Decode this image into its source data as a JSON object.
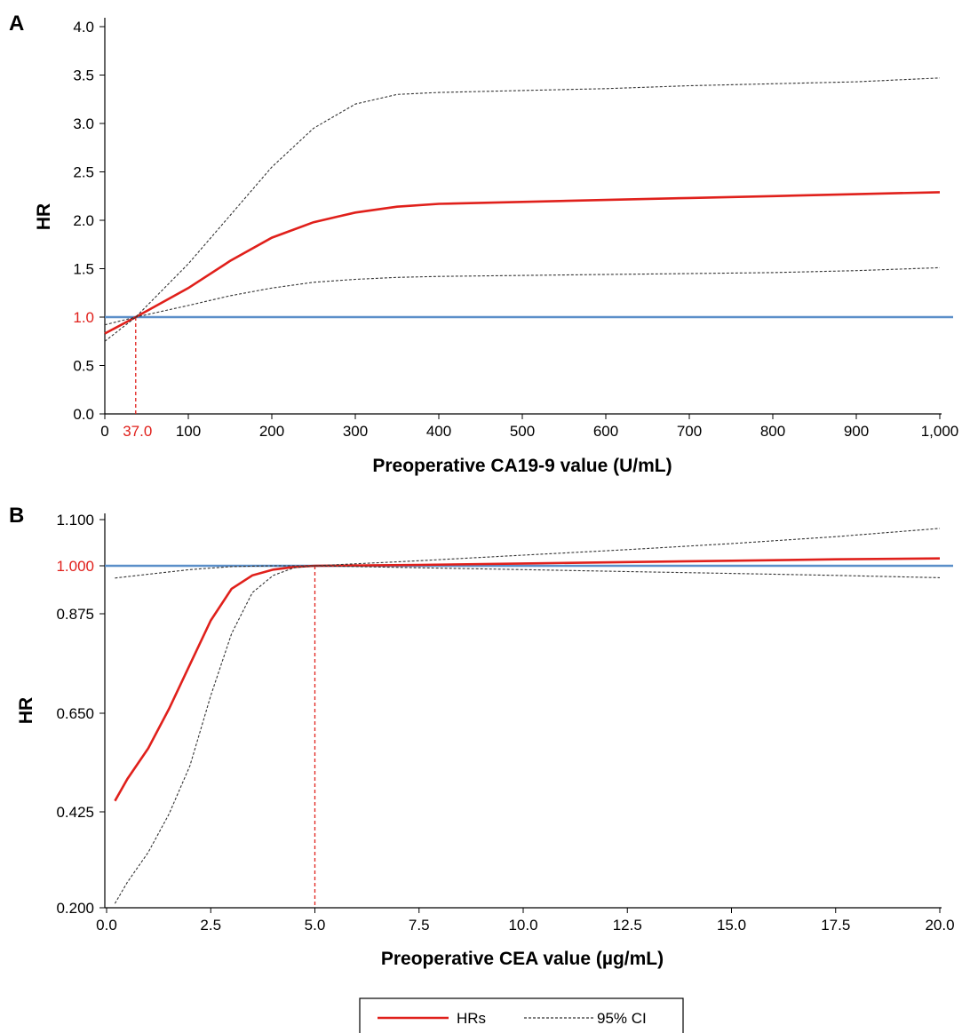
{
  "legend": {
    "hr_label": "HRs",
    "ci_label": "95% CI"
  },
  "colors": {
    "hr": "#e0201b",
    "ci": "#333333",
    "reference": "#5b8fc9",
    "highlight": "#e0201b"
  },
  "chart_data": [
    {
      "panel": "A",
      "type": "line",
      "xlabel": "Preoperative CA19-9 value (U/mL)",
      "ylabel": "HR",
      "xlim": [
        0,
        1000
      ],
      "ylim": [
        0,
        4.0
      ],
      "x_ticks": [
        {
          "value": 0,
          "label": "0"
        },
        {
          "value": 100,
          "label": "100"
        },
        {
          "value": 200,
          "label": "200"
        },
        {
          "value": 300,
          "label": "300"
        },
        {
          "value": 400,
          "label": "400"
        },
        {
          "value": 500,
          "label": "500"
        },
        {
          "value": 600,
          "label": "600"
        },
        {
          "value": 700,
          "label": "700"
        },
        {
          "value": 800,
          "label": "800"
        },
        {
          "value": 900,
          "label": "900"
        },
        {
          "value": 1000,
          "label": "1,000"
        }
      ],
      "y_ticks": [
        {
          "value": 0,
          "label": "0.0"
        },
        {
          "value": 0.5,
          "label": "0.5"
        },
        {
          "value": 1.0,
          "label": "1.0",
          "highlight": true
        },
        {
          "value": 1.5,
          "label": "1.5"
        },
        {
          "value": 2.0,
          "label": "2.0"
        },
        {
          "value": 2.5,
          "label": "2.5"
        },
        {
          "value": 3.0,
          "label": "3.0"
        },
        {
          "value": 3.5,
          "label": "3.5"
        },
        {
          "value": 4.0,
          "label": "4.0"
        }
      ],
      "cutoff": {
        "value": 37,
        "label": "37.0"
      },
      "reference_y": 1.0,
      "series": [
        {
          "name": "HRs",
          "role": "hr",
          "x": [
            0,
            37,
            100,
            150,
            200,
            250,
            300,
            350,
            400,
            500,
            600,
            700,
            800,
            900,
            1000
          ],
          "y": [
            0.83,
            1.0,
            1.3,
            1.58,
            1.82,
            1.98,
            2.08,
            2.14,
            2.17,
            2.19,
            2.21,
            2.23,
            2.25,
            2.27,
            2.29
          ]
        },
        {
          "name": "95% CI",
          "role": "ci_upper",
          "x": [
            0,
            37,
            100,
            150,
            200,
            250,
            300,
            350,
            400,
            500,
            600,
            700,
            800,
            900,
            1000
          ],
          "y": [
            0.75,
            1.0,
            1.55,
            2.05,
            2.55,
            2.95,
            3.2,
            3.3,
            3.32,
            3.34,
            3.36,
            3.39,
            3.41,
            3.43,
            3.47
          ]
        },
        {
          "name": "95% CI",
          "role": "ci_lower",
          "x": [
            0,
            37,
            100,
            150,
            200,
            250,
            300,
            350,
            400,
            500,
            600,
            700,
            800,
            900,
            1000
          ],
          "y": [
            0.92,
            1.0,
            1.12,
            1.22,
            1.3,
            1.36,
            1.39,
            1.41,
            1.42,
            1.43,
            1.44,
            1.45,
            1.46,
            1.48,
            1.51
          ]
        }
      ]
    },
    {
      "panel": "B",
      "type": "line",
      "xlabel": "Preoperative CEA value (µg/mL)",
      "ylabel": "HR",
      "xlim": [
        0,
        20
      ],
      "y_scale": "piecewise (tick-based, non-linear)",
      "x_ticks": [
        {
          "value": 0,
          "label": "0.0"
        },
        {
          "value": 2.5,
          "label": "2.5"
        },
        {
          "value": 5,
          "label": "5.0"
        },
        {
          "value": 7.5,
          "label": "7.5"
        },
        {
          "value": 10,
          "label": "10.0"
        },
        {
          "value": 12.5,
          "label": "12.5"
        },
        {
          "value": 15,
          "label": "15.0"
        },
        {
          "value": 17.5,
          "label": "17.5"
        },
        {
          "value": 20,
          "label": "20.0"
        }
      ],
      "y_ticks": [
        {
          "value": 0.2,
          "label": "0.200"
        },
        {
          "value": 0.425,
          "label": "0.425"
        },
        {
          "value": 0.65,
          "label": "0.650"
        },
        {
          "value": 0.875,
          "label": "0.875"
        },
        {
          "value": 1.0,
          "label": "1.000",
          "highlight": true
        },
        {
          "value": 1.1,
          "label": "1.100"
        }
      ],
      "cutoff": {
        "value": 5,
        "label": "5.0"
      },
      "reference_y": 1.0,
      "series": [
        {
          "name": "HRs",
          "role": "hr",
          "x": [
            0.2,
            0.5,
            1.0,
            1.5,
            2.0,
            2.5,
            3.0,
            3.5,
            4.0,
            4.5,
            5.0,
            7.5,
            10,
            12.5,
            15,
            17.5,
            20
          ],
          "y": [
            0.45,
            0.5,
            0.57,
            0.66,
            0.76,
            0.86,
            0.94,
            0.975,
            0.99,
            0.997,
            1.0,
            1.002,
            1.005,
            1.008,
            1.011,
            1.014,
            1.016
          ]
        },
        {
          "name": "95% CI",
          "role": "ci_lower",
          "x": [
            0.2,
            0.5,
            1.0,
            1.5,
            2.0,
            2.5,
            3.0,
            3.5,
            4.0,
            4.5,
            5.0,
            7.5,
            10,
            12.5,
            15,
            17.5,
            20
          ],
          "y": [
            0.21,
            0.26,
            0.33,
            0.42,
            0.53,
            0.69,
            0.83,
            0.93,
            0.975,
            0.995,
            1.0,
            0.995,
            0.99,
            0.985,
            0.98,
            0.975,
            0.969
          ]
        },
        {
          "name": "95% CI",
          "role": "ci_upper",
          "x": [
            0.2,
            1.0,
            2.0,
            3.0,
            4.0,
            5.0,
            7.5,
            10,
            12.5,
            15,
            17.5,
            20
          ],
          "y": [
            0.968,
            0.978,
            0.99,
            0.998,
            1.0,
            1.0,
            1.011,
            1.023,
            1.035,
            1.048,
            1.063,
            1.081
          ]
        }
      ]
    }
  ]
}
